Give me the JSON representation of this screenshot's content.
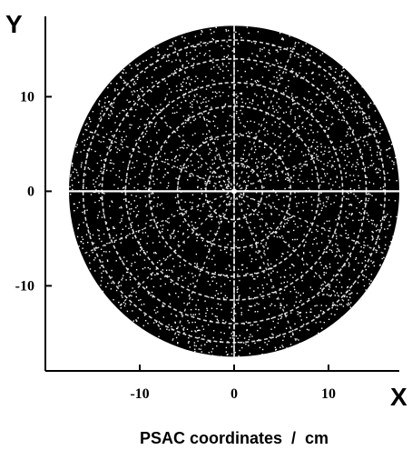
{
  "chart_data": {
    "type": "scatter",
    "title": "",
    "xlabel": "PSAC coordinates  /  cm",
    "ylabel": "",
    "x_axis_letter": "X",
    "y_axis_letter": "Y",
    "xlim": [
      -20,
      17.5
    ],
    "ylim": [
      -19,
      18.5
    ],
    "x_ticks": [
      -10,
      0,
      10
    ],
    "x_tick_labels": [
      "-10",
      "0",
      "10"
    ],
    "y_ticks": [
      10,
      0,
      -10
    ],
    "y_tick_labels": [
      "10",
      "0",
      "-10"
    ],
    "grid": false,
    "legend": "none",
    "disk": {
      "center": [
        0,
        0
      ],
      "radius": 17.5
    },
    "colors": {
      "points": "#000000",
      "gaps": "#ffffff",
      "axes": "#000000"
    }
  }
}
